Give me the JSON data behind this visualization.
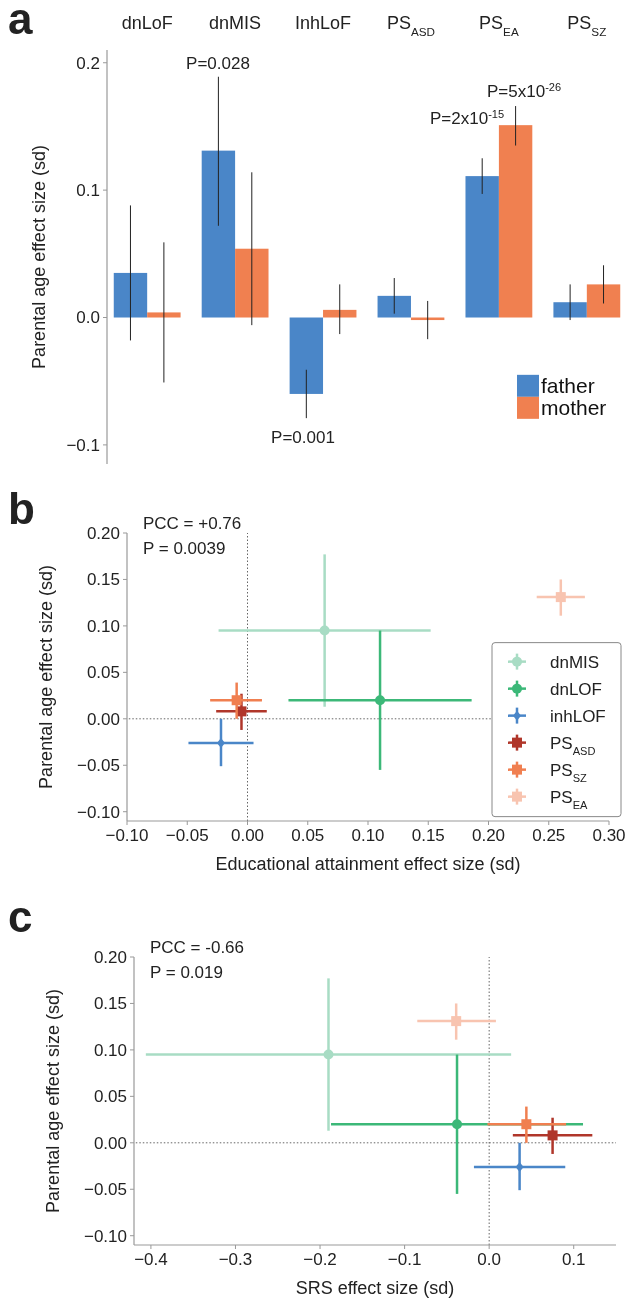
{
  "chart_data": [
    {
      "type": "bar",
      "title": "a",
      "ylabel": "Parental age effect size (sd)",
      "categories": [
        "dnLoF",
        "dnMIS",
        "InhLoF",
        "PS$_{ASD}$",
        "PS$_{EA}$",
        "PS$_{SZ}$"
      ],
      "series": [
        {
          "name": "father",
          "color": "#4a86c8",
          "values": [
            0.035,
            0.131,
            -0.06,
            0.017,
            0.111,
            0.012
          ],
          "errors": [
            [
              -0.018,
              0.088
            ],
            [
              0.072,
              0.189
            ],
            [
              -0.079,
              -0.041
            ],
            [
              0.003,
              0.031
            ],
            [
              0.097,
              0.125
            ],
            [
              -0.002,
              0.026
            ]
          ]
        },
        {
          "name": "mother",
          "color": "#f08050",
          "values": [
            0.004,
            0.054,
            0.006,
            -0.002,
            0.151,
            0.026
          ],
          "errors": [
            [
              -0.051,
              0.059
            ],
            [
              -0.006,
              0.114
            ],
            [
              -0.013,
              0.026
            ],
            [
              -0.017,
              0.013
            ],
            [
              0.135,
              0.166
            ],
            [
              0.011,
              0.041
            ]
          ]
        }
      ],
      "ylim": [
        -0.115,
        0.21
      ],
      "yticks": [
        {
          "value": -0.1,
          "label": "−0.1"
        },
        {
          "value": 0,
          "label": "0.0"
        },
        0.1,
        0.2
      ],
      "annotations": [
        "P=0.028",
        "P=0.001",
        "P=2x10$^{-15}$",
        "P=5x10$^{-26}$"
      ],
      "legend": "bottom right",
      "grid": false
    },
    {
      "type": "scatter",
      "title": "b",
      "xlabel": "Educational attainment effect size (sd)",
      "ylabel": "Parental age effect size (sd)",
      "series": [
        {
          "name": "dnMIS",
          "color": "#a8dcc4",
          "marker": "circle",
          "x": [
            0.064
          ],
          "values": [
            0.095
          ],
          "xerrors": [
            [
              -0.024,
              0.152
            ]
          ],
          "errors": [
            [
              0.013,
              0.177
            ]
          ]
        },
        {
          "name": "dnLOF",
          "color": "#3cb878",
          "marker": "circle",
          "x": [
            0.11
          ],
          "values": [
            0.02
          ],
          "xerrors": [
            [
              0.034,
              0.186
            ]
          ],
          "errors": [
            [
              -0.055,
              0.095
            ]
          ]
        },
        {
          "name": "inhLOF",
          "color": "#4a86c8",
          "marker": "diamond",
          "x": [
            -0.022
          ],
          "values": [
            -0.026
          ],
          "xerrors": [
            [
              -0.049,
              0.005
            ]
          ],
          "errors": [
            [
              -0.051,
              0.0
            ]
          ]
        },
        {
          "name": "PS$_{ASD}$",
          "color": "#b0362a",
          "marker": "square",
          "x": [
            -0.005
          ],
          "values": [
            0.008
          ],
          "xerrors": [
            [
              -0.026,
              0.016
            ]
          ],
          "errors": [
            [
              -0.012,
              0.027
            ]
          ]
        },
        {
          "name": "PS$_{SZ}$",
          "color": "#f07f50",
          "marker": "square",
          "x": [
            -0.009
          ],
          "values": [
            0.02
          ],
          "xerrors": [
            [
              -0.031,
              0.012
            ]
          ],
          "errors": [
            [
              0.0,
              0.039
            ]
          ]
        },
        {
          "name": "PS$_{EA}$",
          "color": "#f8c4b0",
          "marker": "square",
          "x": [
            0.26
          ],
          "values": [
            0.131
          ],
          "xerrors": [
            [
              0.24,
              0.28
            ]
          ],
          "errors": [
            [
              0.111,
              0.15
            ]
          ]
        }
      ],
      "xlim": [
        -0.1,
        0.3
      ],
      "xticks": [
        {
          "value": -0.1,
          "label": "−0.10"
        },
        {
          "value": -0.05,
          "label": "−0.05"
        },
        {
          "value": 0,
          "label": "0.00"
        },
        0.05,
        {
          "value": 0.1,
          "label": "0.10"
        },
        0.15,
        {
          "value": 0.2,
          "label": "0.20"
        },
        0.25,
        {
          "value": 0.3,
          "label": "0.30"
        }
      ],
      "ylim": [
        -0.11,
        0.2
      ],
      "yticks": [
        {
          "value": -0.1,
          "label": "−0.10"
        },
        {
          "value": -0.05,
          "label": "−0.05"
        },
        {
          "value": 0,
          "label": "0.00"
        },
        0.05,
        {
          "value": 0.1,
          "label": "0.10"
        },
        0.15,
        {
          "value": 0.2,
          "label": "0.20"
        }
      ],
      "ref_lines": [
        {
          "axis": "x",
          "value": 0,
          "color": "#555555",
          "line_style": "dotted"
        },
        {
          "axis": "y",
          "value": 0,
          "color": "#555555",
          "line_style": "dotted"
        }
      ],
      "annotations": [
        "PCC = +0.76",
        "P = 0.0039"
      ],
      "legend": "right",
      "grid": false
    },
    {
      "type": "scatter",
      "title": "c",
      "xlabel": "SRS effect size (sd)",
      "ylabel": "Parental age effect size (sd)",
      "series": [
        {
          "color": "#a8dcc4",
          "marker": "circle",
          "x": [
            -0.19
          ],
          "values": [
            0.095
          ],
          "xerrors": [
            [
              -0.406,
              0.026
            ]
          ],
          "errors": [
            [
              0.013,
              0.177
            ]
          ]
        },
        {
          "color": "#3cb878",
          "marker": "circle",
          "x": [
            -0.038
          ],
          "values": [
            0.02
          ],
          "xerrors": [
            [
              -0.187,
              0.111
            ]
          ],
          "errors": [
            [
              -0.055,
              0.095
            ]
          ]
        },
        {
          "color": "#4a86c8",
          "marker": "diamond",
          "x": [
            0.036
          ],
          "values": [
            -0.026
          ],
          "xerrors": [
            [
              -0.018,
              0.09
            ]
          ],
          "errors": [
            [
              -0.051,
              0.0
            ]
          ]
        },
        {
          "color": "#b0362a",
          "marker": "square",
          "x": [
            0.075
          ],
          "values": [
            0.008
          ],
          "xerrors": [
            [
              0.028,
              0.122
            ]
          ],
          "errors": [
            [
              -0.012,
              0.027
            ]
          ]
        },
        {
          "color": "#f07f50",
          "marker": "square",
          "x": [
            0.044
          ],
          "values": [
            0.02
          ],
          "xerrors": [
            [
              -0.002,
              0.091
            ]
          ],
          "errors": [
            [
              0.0,
              0.039
            ]
          ]
        },
        {
          "color": "#f8c4b0",
          "marker": "square",
          "x": [
            -0.039
          ],
          "values": [
            0.131
          ],
          "xerrors": [
            [
              -0.085,
              0.008
            ]
          ],
          "errors": [
            [
              0.111,
              0.15
            ]
          ]
        }
      ],
      "xlim": [
        -0.42,
        0.15
      ],
      "xticks": [
        {
          "value": -0.4,
          "label": "−0.4"
        },
        {
          "value": -0.3,
          "label": "−0.3"
        },
        {
          "value": -0.2,
          "label": "−0.2"
        },
        {
          "value": -0.1,
          "label": "−0.1"
        },
        {
          "value": 0,
          "label": "0.0"
        },
        0.1
      ],
      "ylim": [
        -0.11,
        0.2
      ],
      "yticks": [
        {
          "value": -0.1,
          "label": "−0.10"
        },
        {
          "value": -0.05,
          "label": "−0.05"
        },
        {
          "value": 0,
          "label": "0.00"
        },
        0.05,
        {
          "value": 0.1,
          "label": "0.10"
        },
        0.15,
        {
          "value": 0.2,
          "label": "0.20"
        }
      ],
      "ref_lines": [
        {
          "axis": "x",
          "value": 0,
          "color": "#555555",
          "line_style": "dotted"
        },
        {
          "axis": "y",
          "value": 0,
          "color": "#555555",
          "line_style": "dotted"
        }
      ],
      "annotations": [
        "PCC = -0.66",
        "P = 0.019"
      ],
      "grid": false
    }
  ]
}
